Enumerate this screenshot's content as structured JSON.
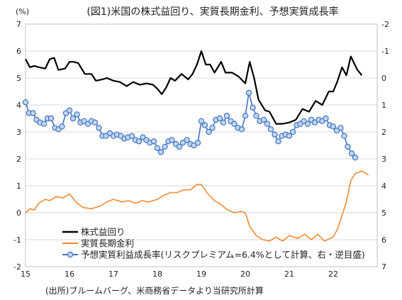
{
  "chart_data": {
    "type": "line",
    "title": "(図1)米国の株式益回り、実質長期金利、予想実質成長率",
    "left_unit": "(%)",
    "source": "(出所)ブルームバーグ、米商務省データより当研究所計算",
    "left_axis": {
      "min": -2,
      "max": 7,
      "ticks": [
        "7",
        "6",
        "5",
        "4",
        "3",
        "2",
        "1",
        "0",
        "-1",
        "-2"
      ]
    },
    "right_axis": {
      "min": -2,
      "max": 7,
      "reversed": true,
      "ticks": [
        "-2",
        "-1",
        "0",
        "1",
        "2",
        "3",
        "4",
        "5",
        "6",
        "7"
      ]
    },
    "x_axis": {
      "min": 2015,
      "max": 2023,
      "ticks": [
        "15",
        "16",
        "17",
        "18",
        "19",
        "20",
        "21",
        "22"
      ]
    },
    "colors": {
      "earnings_yield": "#000000",
      "real_yield": "#f28a30",
      "growth_line": "#4472c4",
      "growth_marker_fill": "#bdd7ee",
      "grid": "#d9d9d9"
    },
    "series": [
      {
        "name": "株式益回り",
        "axis": "left",
        "values": [
          [
            2015.0,
            5.7
          ],
          [
            2015.1,
            5.4
          ],
          [
            2015.2,
            5.45
          ],
          [
            2015.3,
            5.4
          ],
          [
            2015.45,
            5.35
          ],
          [
            2015.55,
            5.7
          ],
          [
            2015.65,
            5.75
          ],
          [
            2015.75,
            5.3
          ],
          [
            2015.9,
            5.35
          ],
          [
            2016.0,
            5.6
          ],
          [
            2016.1,
            5.6
          ],
          [
            2016.2,
            5.55
          ],
          [
            2016.35,
            5.15
          ],
          [
            2016.5,
            5.15
          ],
          [
            2016.6,
            4.9
          ],
          [
            2016.75,
            4.95
          ],
          [
            2016.85,
            5.0
          ],
          [
            2017.0,
            4.9
          ],
          [
            2017.15,
            4.85
          ],
          [
            2017.3,
            4.7
          ],
          [
            2017.45,
            4.85
          ],
          [
            2017.6,
            4.75
          ],
          [
            2017.75,
            4.8
          ],
          [
            2017.9,
            4.75
          ],
          [
            2018.0,
            4.6
          ],
          [
            2018.1,
            4.4
          ],
          [
            2018.2,
            4.65
          ],
          [
            2018.3,
            5.0
          ],
          [
            2018.4,
            4.9
          ],
          [
            2018.55,
            5.15
          ],
          [
            2018.7,
            4.95
          ],
          [
            2018.8,
            5.15
          ],
          [
            2018.9,
            5.5
          ],
          [
            2019.0,
            6.0
          ],
          [
            2019.1,
            5.5
          ],
          [
            2019.2,
            5.5
          ],
          [
            2019.3,
            5.2
          ],
          [
            2019.45,
            5.6
          ],
          [
            2019.55,
            5.2
          ],
          [
            2019.7,
            5.2
          ],
          [
            2019.85,
            5.05
          ],
          [
            2020.0,
            4.8
          ],
          [
            2020.1,
            5.6
          ],
          [
            2020.2,
            5.0
          ],
          [
            2020.3,
            4.2
          ],
          [
            2020.45,
            3.8
          ],
          [
            2020.55,
            3.75
          ],
          [
            2020.7,
            3.3
          ],
          [
            2020.85,
            3.3
          ],
          [
            2021.0,
            3.35
          ],
          [
            2021.15,
            3.45
          ],
          [
            2021.3,
            3.85
          ],
          [
            2021.45,
            3.75
          ],
          [
            2021.6,
            4.15
          ],
          [
            2021.75,
            4.0
          ],
          [
            2021.9,
            4.5
          ],
          [
            2022.0,
            4.5
          ],
          [
            2022.1,
            4.9
          ],
          [
            2022.2,
            5.4
          ],
          [
            2022.3,
            5.1
          ],
          [
            2022.4,
            5.8
          ],
          [
            2022.55,
            5.3
          ],
          [
            2022.65,
            5.1
          ]
        ]
      },
      {
        "name": "実質長期金利",
        "axis": "left",
        "values": [
          [
            2015.0,
            0.0
          ],
          [
            2015.1,
            0.15
          ],
          [
            2015.2,
            0.1
          ],
          [
            2015.3,
            0.35
          ],
          [
            2015.45,
            0.5
          ],
          [
            2015.55,
            0.45
          ],
          [
            2015.7,
            0.6
          ],
          [
            2015.85,
            0.55
          ],
          [
            2016.0,
            0.7
          ],
          [
            2016.15,
            0.4
          ],
          [
            2016.3,
            0.2
          ],
          [
            2016.5,
            0.15
          ],
          [
            2016.7,
            0.25
          ],
          [
            2016.85,
            0.4
          ],
          [
            2017.0,
            0.5
          ],
          [
            2017.2,
            0.4
          ],
          [
            2017.35,
            0.45
          ],
          [
            2017.5,
            0.35
          ],
          [
            2017.65,
            0.45
          ],
          [
            2017.8,
            0.4
          ],
          [
            2018.0,
            0.5
          ],
          [
            2018.15,
            0.65
          ],
          [
            2018.3,
            0.75
          ],
          [
            2018.45,
            0.75
          ],
          [
            2018.6,
            0.85
          ],
          [
            2018.75,
            0.85
          ],
          [
            2018.9,
            1.05
          ],
          [
            2019.0,
            1.05
          ],
          [
            2019.15,
            0.7
          ],
          [
            2019.3,
            0.45
          ],
          [
            2019.45,
            0.3
          ],
          [
            2019.6,
            0.1
          ],
          [
            2019.75,
            0.0
          ],
          [
            2019.9,
            0.05
          ],
          [
            2020.0,
            0.0
          ],
          [
            2020.1,
            -0.5
          ],
          [
            2020.25,
            -0.85
          ],
          [
            2020.4,
            -1.0
          ],
          [
            2020.55,
            -1.05
          ],
          [
            2020.7,
            -0.9
          ],
          [
            2020.85,
            -1.05
          ],
          [
            2021.0,
            -0.85
          ],
          [
            2021.2,
            -0.95
          ],
          [
            2021.35,
            -0.8
          ],
          [
            2021.5,
            -1.0
          ],
          [
            2021.65,
            -0.8
          ],
          [
            2021.8,
            -1.05
          ],
          [
            2022.0,
            -0.9
          ],
          [
            2022.1,
            -0.6
          ],
          [
            2022.2,
            -0.1
          ],
          [
            2022.3,
            0.4
          ],
          [
            2022.4,
            1.2
          ],
          [
            2022.5,
            1.45
          ],
          [
            2022.65,
            1.55
          ],
          [
            2022.8,
            1.4
          ]
        ]
      },
      {
        "name": "予想実質利益成長率(リスクプレミアム=6.4%として計算、右・逆目盛)",
        "axis": "right",
        "values": [
          [
            2015.0,
            0.9
          ],
          [
            2015.08,
            1.3
          ],
          [
            2015.17,
            1.3
          ],
          [
            2015.25,
            1.55
          ],
          [
            2015.33,
            1.65
          ],
          [
            2015.42,
            1.7
          ],
          [
            2015.5,
            1.5
          ],
          [
            2015.58,
            1.5
          ],
          [
            2015.67,
            1.85
          ],
          [
            2015.75,
            1.9
          ],
          [
            2015.83,
            1.8
          ],
          [
            2015.92,
            1.3
          ],
          [
            2016.0,
            1.2
          ],
          [
            2016.08,
            1.5
          ],
          [
            2016.17,
            1.35
          ],
          [
            2016.25,
            1.65
          ],
          [
            2016.33,
            1.6
          ],
          [
            2016.42,
            1.7
          ],
          [
            2016.5,
            1.6
          ],
          [
            2016.58,
            1.65
          ],
          [
            2016.67,
            1.85
          ],
          [
            2016.75,
            2.15
          ],
          [
            2016.83,
            2.15
          ],
          [
            2016.92,
            2.05
          ],
          [
            2017.0,
            2.15
          ],
          [
            2017.08,
            2.1
          ],
          [
            2017.17,
            2.15
          ],
          [
            2017.25,
            2.25
          ],
          [
            2017.33,
            2.2
          ],
          [
            2017.42,
            2.15
          ],
          [
            2017.5,
            2.3
          ],
          [
            2017.58,
            2.35
          ],
          [
            2017.67,
            2.2
          ],
          [
            2017.75,
            2.3
          ],
          [
            2017.83,
            2.4
          ],
          [
            2017.92,
            2.35
          ],
          [
            2018.0,
            2.6
          ],
          [
            2018.08,
            2.75
          ],
          [
            2018.17,
            2.55
          ],
          [
            2018.25,
            2.35
          ],
          [
            2018.33,
            2.3
          ],
          [
            2018.42,
            2.45
          ],
          [
            2018.5,
            2.55
          ],
          [
            2018.58,
            2.4
          ],
          [
            2018.67,
            2.3
          ],
          [
            2018.75,
            2.45
          ],
          [
            2018.83,
            2.5
          ],
          [
            2018.92,
            2.4
          ],
          [
            2019.0,
            1.6
          ],
          [
            2019.08,
            1.75
          ],
          [
            2019.17,
            2.0
          ],
          [
            2019.25,
            1.85
          ],
          [
            2019.33,
            1.55
          ],
          [
            2019.42,
            1.5
          ],
          [
            2019.5,
            1.65
          ],
          [
            2019.58,
            1.4
          ],
          [
            2019.67,
            1.6
          ],
          [
            2019.75,
            1.7
          ],
          [
            2019.83,
            1.85
          ],
          [
            2019.92,
            1.9
          ],
          [
            2020.0,
            1.4
          ],
          [
            2020.08,
            0.55
          ],
          [
            2020.17,
            1.1
          ],
          [
            2020.25,
            1.4
          ],
          [
            2020.33,
            1.6
          ],
          [
            2020.42,
            1.55
          ],
          [
            2020.5,
            1.7
          ],
          [
            2020.58,
            1.9
          ],
          [
            2020.67,
            2.1
          ],
          [
            2020.75,
            2.35
          ],
          [
            2020.83,
            2.15
          ],
          [
            2020.92,
            2.1
          ],
          [
            2021.0,
            2.15
          ],
          [
            2021.08,
            2.0
          ],
          [
            2021.17,
            1.75
          ],
          [
            2021.25,
            1.7
          ],
          [
            2021.33,
            1.6
          ],
          [
            2021.42,
            1.7
          ],
          [
            2021.5,
            1.55
          ],
          [
            2021.58,
            1.65
          ],
          [
            2021.67,
            1.55
          ],
          [
            2021.75,
            1.6
          ],
          [
            2021.83,
            1.5
          ],
          [
            2021.92,
            1.75
          ],
          [
            2022.0,
            1.8
          ],
          [
            2022.08,
            1.95
          ],
          [
            2022.17,
            1.85
          ],
          [
            2022.25,
            2.15
          ],
          [
            2022.33,
            2.55
          ],
          [
            2022.42,
            2.8
          ],
          [
            2022.5,
            2.95
          ]
        ]
      }
    ]
  }
}
